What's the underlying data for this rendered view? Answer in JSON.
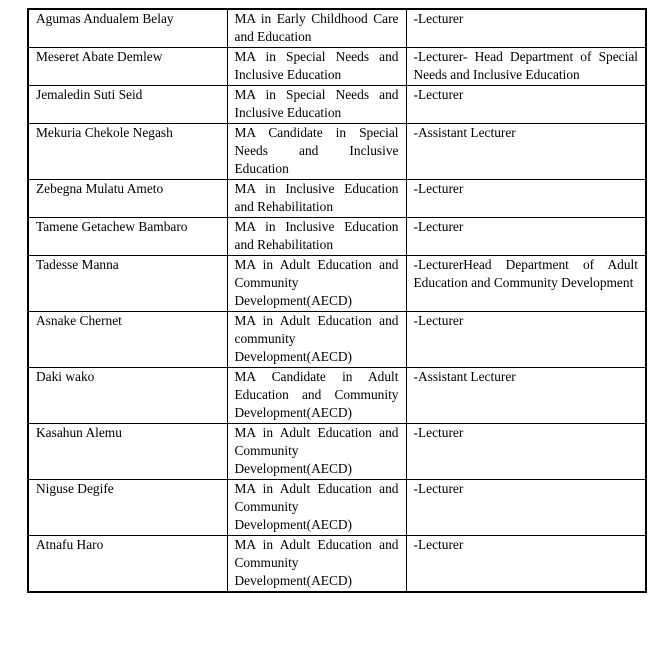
{
  "table": {
    "columns": [
      "name",
      "qualification",
      "position"
    ],
    "rows": [
      {
        "name": "Agumas Andualem Belay",
        "qualification": "MA in Early Childhood Care and Education",
        "position": "-Lecturer"
      },
      {
        "name": "Meseret Abate Demlew",
        "qualification": "MA in Special Needs and Inclusive Education",
        "position": "-Lecturer- Head Department of Special Needs and Inclusive Education"
      },
      {
        "name": "Jemaledin Suti Seid",
        "qualification": "MA in Special Needs and Inclusive Education",
        "position": "-Lecturer"
      },
      {
        "name": "Mekuria Chekole Negash",
        "qualification": "MA Candidate in Special Needs and Inclusive Education",
        "position": "-Assistant Lecturer"
      },
      {
        "name": "Zebegna Mulatu Ameto",
        "qualification": "MA in Inclusive Education and Rehabilitation",
        "position": "-Lecturer"
      },
      {
        "name": "Tamene Getachew Bambaro",
        "qualification": "MA in Inclusive Education and Rehabilitation",
        "position": "-Lecturer"
      },
      {
        "name": "Tadesse Manna",
        "qualification": "MA in Adult Education and Community Development(AECD)",
        "position": "-LecturerHead Department of Adult Education and Community Development"
      },
      {
        "name": "Asnake Chernet",
        "qualification": "MA in Adult Education and community Development(AECD)",
        "position": "-Lecturer"
      },
      {
        "name": "Daki wako",
        "qualification": "MA Candidate in Adult Education and Community Development(AECD)",
        "position": "-Assistant Lecturer"
      },
      {
        "name": "Kasahun Alemu",
        "qualification": "MA in Adult Education and Community Development(AECD)",
        "position": "-Lecturer"
      },
      {
        "name": "Niguse Degife",
        "qualification": "MA in Adult Education and Community Development(AECD)",
        "position": "-Lecturer"
      },
      {
        "name": "Atnafu Haro",
        "qualification": "MA in Adult Education and Community Development(AECD)",
        "position": "-Lecturer"
      }
    ]
  }
}
